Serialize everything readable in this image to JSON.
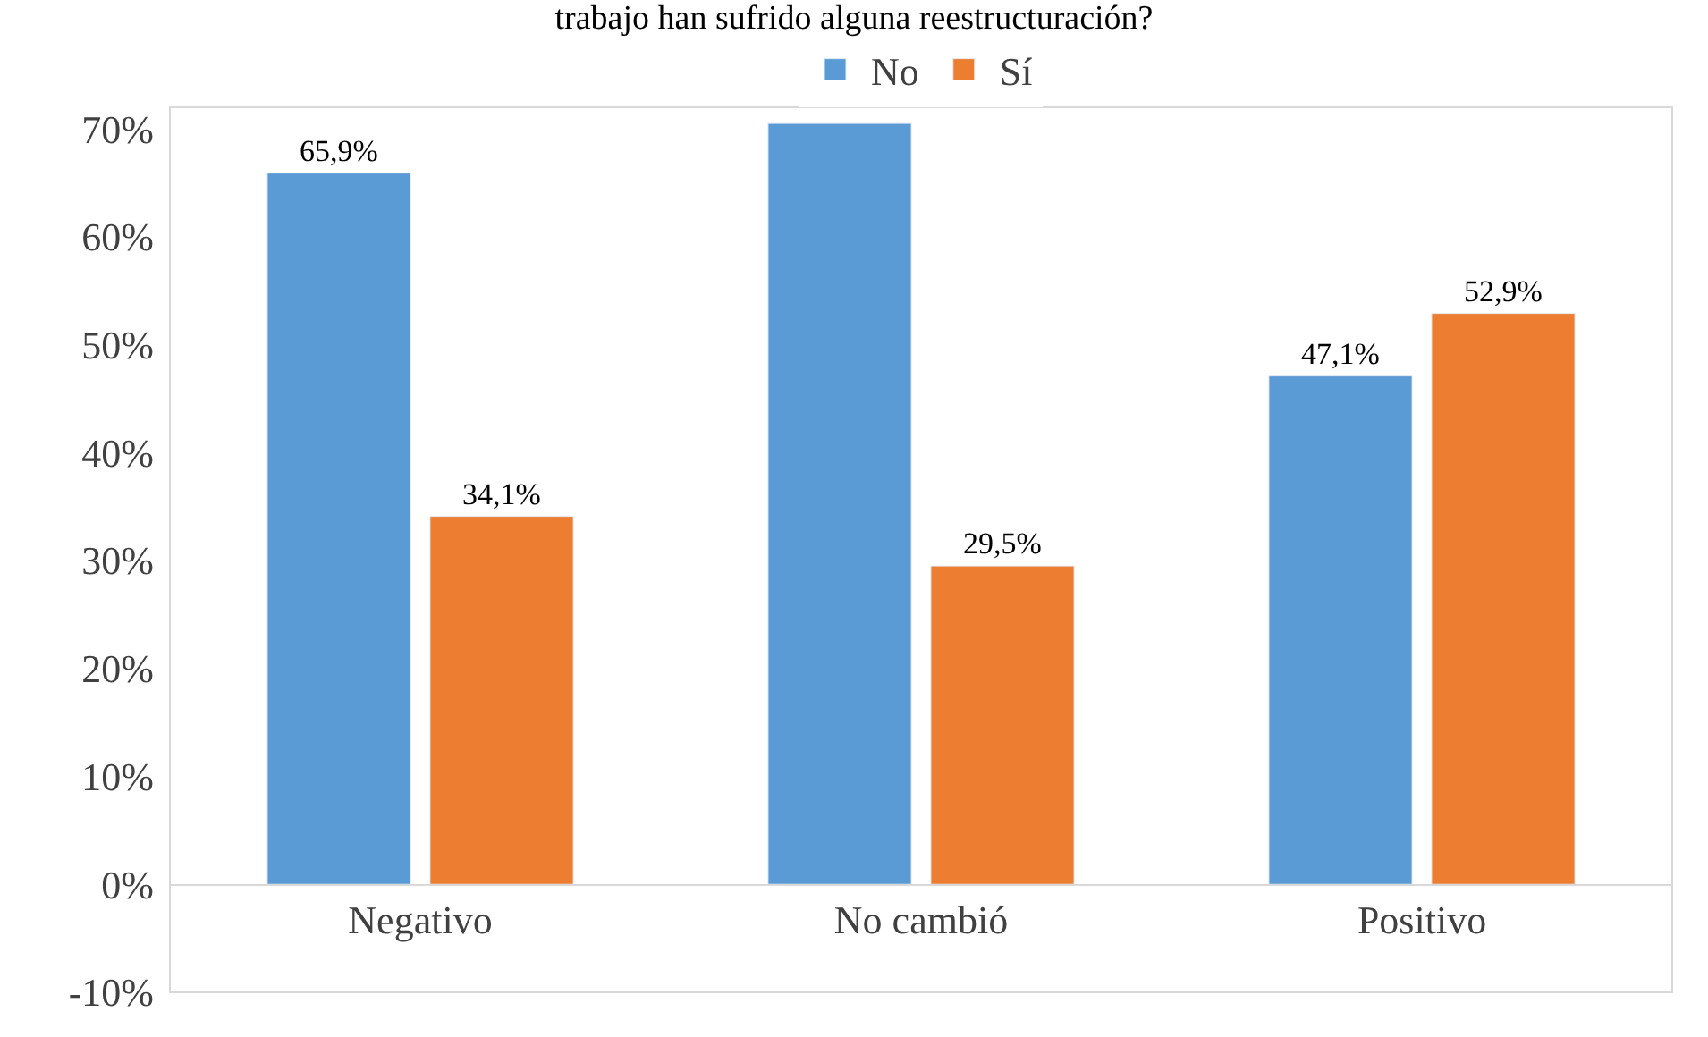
{
  "chart_data": {
    "type": "bar",
    "title": "trabajo han sufrido alguna reestructuración?",
    "categories": [
      "Negativo",
      "No cambió",
      "Positivo"
    ],
    "series": [
      {
        "name": "No",
        "color": "#5b9bd5",
        "values": [
          65.9,
          70.5,
          47.1
        ],
        "value_labels": [
          "65,9%",
          null,
          "47,1%"
        ]
      },
      {
        "name": "Sí",
        "color": "#ed7d31",
        "values": [
          34.1,
          29.5,
          52.9
        ],
        "value_labels": [
          "34,1%",
          "29,5%",
          "52,9%"
        ]
      }
    ],
    "ylim": [
      -10,
      72
    ],
    "yticks": [
      {
        "value": -10,
        "label": "-10%"
      },
      {
        "value": 0,
        "label": "0%"
      },
      {
        "value": 10,
        "label": "10%"
      },
      {
        "value": 20,
        "label": "20%"
      },
      {
        "value": 30,
        "label": "30%"
      },
      {
        "value": 40,
        "label": "40%"
      },
      {
        "value": 50,
        "label": "50%"
      },
      {
        "value": 60,
        "label": "60%"
      },
      {
        "value": 70,
        "label": "70%"
      }
    ],
    "legend": "top"
  }
}
